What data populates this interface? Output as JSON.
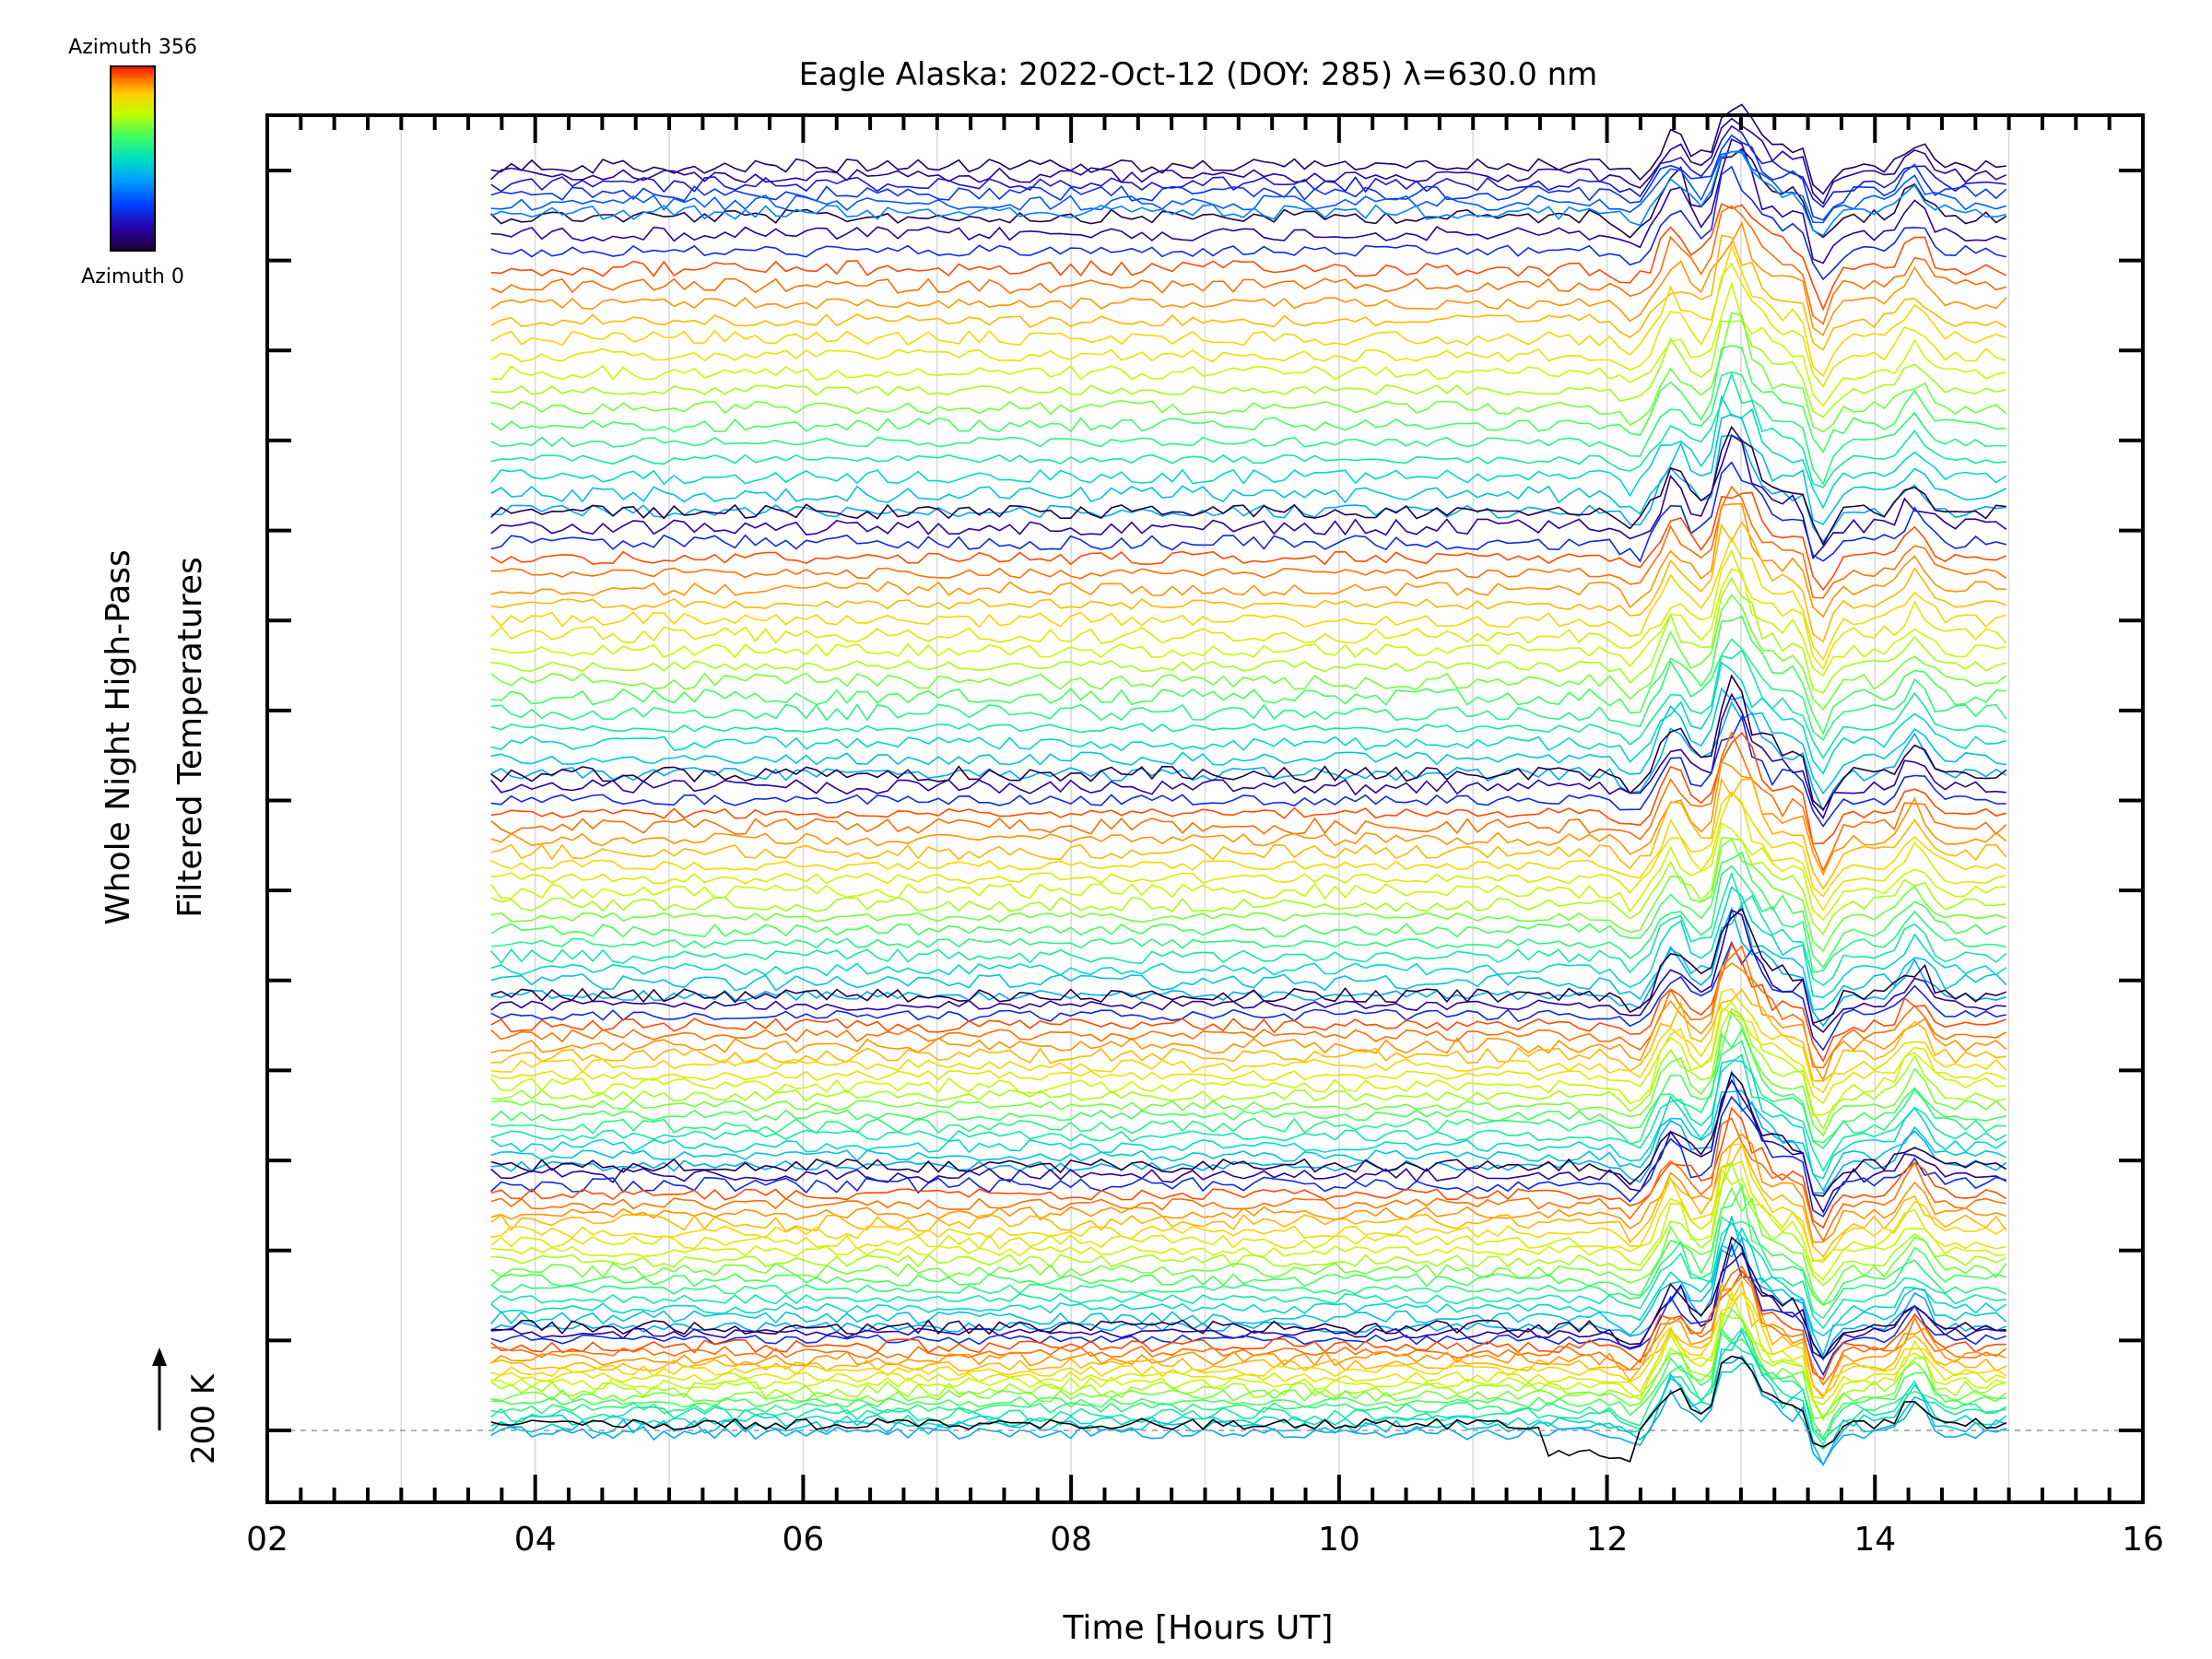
{
  "chart_data": {
    "type": "line",
    "title": "Eagle Alaska: 2022-Oct-12 (DOY: 285) λ=630.0 nm",
    "xlabel": "Time [Hours UT]",
    "ylabel_lines": [
      "Whole Night High-Pass",
      "Filtered Temperatures"
    ],
    "x_unit": "hours UT",
    "xlim": [
      2,
      16
    ],
    "x_tick_labels": [
      "02",
      "04",
      "06",
      "08",
      "10",
      "12",
      "14",
      "16"
    ],
    "x_tick_values": [
      2,
      4,
      6,
      8,
      10,
      12,
      14,
      16
    ],
    "x_grid_values": [
      3,
      4,
      5,
      6,
      7,
      8,
      9,
      10,
      11,
      12,
      13,
      14,
      15
    ],
    "y_offsets_count": 15,
    "data_range_hours": [
      3.67,
      14.98
    ],
    "grid": true,
    "colorbar": {
      "top_label": "Azimuth 356",
      "bottom_label": "Azimuth 0",
      "min": 0,
      "max": 356,
      "colors": [
        "#1a0033",
        "#2a00a8",
        "#0040ff",
        "#00a0ff",
        "#00e0c0",
        "#40ff60",
        "#c0ff00",
        "#ffd000",
        "#ff7000",
        "#ff1000"
      ]
    },
    "scale_bar_label": "200 K",
    "baseline_note": "dashed line at 200 K baseline",
    "stacked_groups": 6,
    "series_per_group": 18,
    "features": {
      "disturbance_peaks_hours": [
        12.5,
        12.95,
        14.3
      ],
      "disturbance_dips_hours": [
        12.2,
        13.6
      ]
    }
  }
}
